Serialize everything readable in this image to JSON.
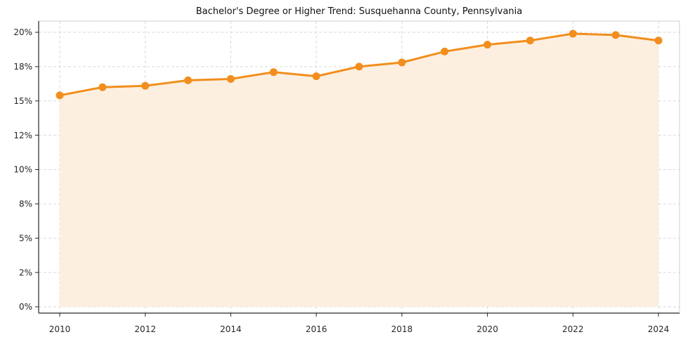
{
  "chart_data": {
    "type": "line",
    "title": "Bachelor's Degree or Higher Trend: Susquehanna County, Pennsylvania",
    "x": [
      2010,
      2011,
      2012,
      2013,
      2014,
      2015,
      2016,
      2017,
      2018,
      2019,
      2020,
      2021,
      2022,
      2023,
      2024
    ],
    "values": [
      15.4,
      16.0,
      16.1,
      16.5,
      16.6,
      17.1,
      16.8,
      17.5,
      17.8,
      18.6,
      19.1,
      19.4,
      19.9,
      19.8,
      19.4
    ],
    "xlabel": "",
    "ylabel": "",
    "x_tick_labels": [
      "2010",
      "2012",
      "2014",
      "2016",
      "2018",
      "2020",
      "2022",
      "2024"
    ],
    "x_ticks": [
      2010,
      2012,
      2014,
      2016,
      2018,
      2020,
      2022,
      2024
    ],
    "y_ticks": [
      0,
      2.5,
      5,
      7.5,
      10,
      12.5,
      15,
      17.5,
      20
    ],
    "y_tick_labels": [
      "0%",
      "2%",
      "5%",
      "8%",
      "10%",
      "12%",
      "15%",
      "18%",
      "20%"
    ],
    "ylim": [
      0,
      20.8
    ],
    "xlim": [
      2009.5,
      2024.5
    ],
    "grid": true,
    "grid_style": "dashed",
    "legend": "none",
    "marker": "circle",
    "area_filled_under_line": true,
    "colors": {
      "line": "#f28e1d",
      "marker": "#f28e1d",
      "area_fill": "#fcefe0",
      "grid": "#d9d9d9",
      "spine_dark": "#262626",
      "spine_light": "#cfcfcf",
      "title_text": "#111111",
      "tick_text": "#262626",
      "background": "#ffffff"
    }
  }
}
